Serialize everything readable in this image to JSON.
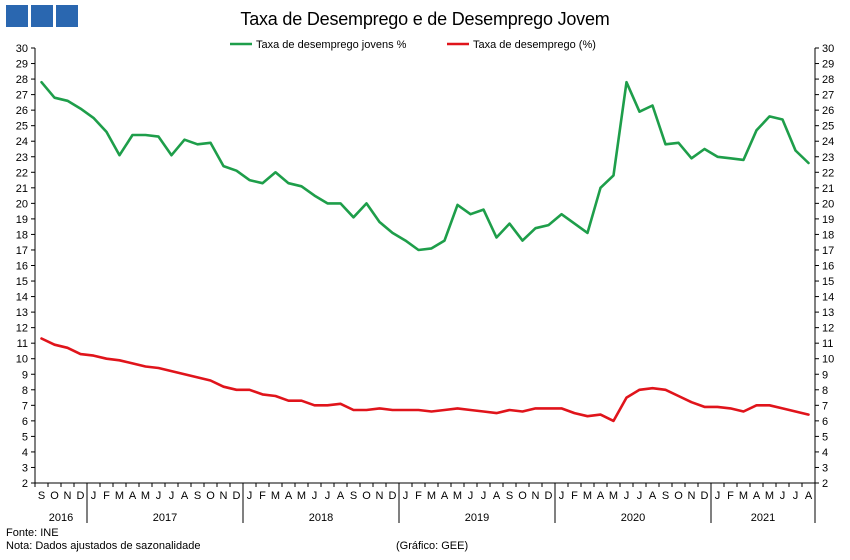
{
  "brand": {
    "logo_name": "logo-squares-icon"
  },
  "colors": {
    "youth": "#1e9e4a",
    "total": "#e0141b",
    "brand": "#2a67b0"
  },
  "chart_data": {
    "type": "line",
    "title": "Taxa  de Desemprego e de Desemprego Jovem",
    "ylim": [
      2,
      30
    ],
    "yticks": [
      2,
      3,
      4,
      5,
      6,
      7,
      8,
      9,
      10,
      11,
      12,
      13,
      14,
      15,
      16,
      17,
      18,
      19,
      20,
      21,
      22,
      23,
      24,
      25,
      26,
      27,
      28,
      29,
      30
    ],
    "grid": false,
    "legend_position": "top-center",
    "months": [
      "S",
      "O",
      "N",
      "D",
      "J",
      "F",
      "M",
      "A",
      "M",
      "J",
      "J",
      "A",
      "S",
      "O",
      "N",
      "D",
      "J",
      "F",
      "M",
      "A",
      "M",
      "J",
      "J",
      "A",
      "S",
      "O",
      "N",
      "D",
      "J",
      "F",
      "M",
      "A",
      "M",
      "J",
      "J",
      "A",
      "S",
      "O",
      "N",
      "D",
      "J",
      "F",
      "M",
      "A",
      "M",
      "J",
      "J",
      "A",
      "S",
      "O",
      "N",
      "D",
      "J",
      "F",
      "M",
      "A",
      "M",
      "J",
      "J",
      "A"
    ],
    "years": [
      {
        "label": "2016",
        "start": 0,
        "count": 4
      },
      {
        "label": "2017",
        "start": 4,
        "count": 12
      },
      {
        "label": "2018",
        "start": 16,
        "count": 12
      },
      {
        "label": "2019",
        "start": 28,
        "count": 12
      },
      {
        "label": "2020",
        "start": 40,
        "count": 12
      },
      {
        "label": "2021",
        "start": 52,
        "count": 8
      }
    ],
    "series": [
      {
        "name": "Taxa de desemprego jovens %",
        "color": "#1e9e4a",
        "values": [
          27.8,
          26.8,
          26.6,
          26.1,
          25.5,
          24.6,
          23.1,
          24.4,
          24.4,
          24.3,
          23.1,
          24.1,
          23.8,
          23.9,
          22.4,
          22.1,
          21.5,
          21.3,
          22.0,
          21.3,
          21.1,
          20.5,
          20.0,
          20.0,
          19.1,
          20.0,
          18.8,
          18.1,
          17.6,
          17.0,
          17.1,
          17.6,
          19.9,
          19.3,
          19.6,
          17.8,
          18.7,
          17.6,
          18.4,
          18.6,
          19.3,
          18.7,
          18.1,
          21.0,
          21.8,
          27.8,
          25.9,
          26.3,
          23.8,
          23.9,
          22.9,
          23.5,
          23.0,
          22.9,
          22.8,
          24.7,
          25.6,
          25.4,
          23.4,
          22.6
        ]
      },
      {
        "name": "Taxa de desemprego (%)",
        "color": "#e0141b",
        "values": [
          11.3,
          10.9,
          10.7,
          10.3,
          10.2,
          10.0,
          9.9,
          9.7,
          9.5,
          9.4,
          9.2,
          9.0,
          8.8,
          8.6,
          8.2,
          8.0,
          8.0,
          7.7,
          7.6,
          7.3,
          7.3,
          7.0,
          7.0,
          7.1,
          6.7,
          6.7,
          6.8,
          6.7,
          6.7,
          6.7,
          6.6,
          6.7,
          6.8,
          6.7,
          6.6,
          6.5,
          6.7,
          6.6,
          6.8,
          6.8,
          6.8,
          6.5,
          6.3,
          6.4,
          6.0,
          7.5,
          8.0,
          8.1,
          8.0,
          7.6,
          7.2,
          6.9,
          6.9,
          6.8,
          6.6,
          7.0,
          7.0,
          6.8,
          6.6,
          6.4
        ]
      }
    ]
  },
  "footer": {
    "source": "Fonte: INE",
    "note": "Nota: Dados ajustados de sazonalidade",
    "credit": "(Gráfico: GEE)"
  }
}
